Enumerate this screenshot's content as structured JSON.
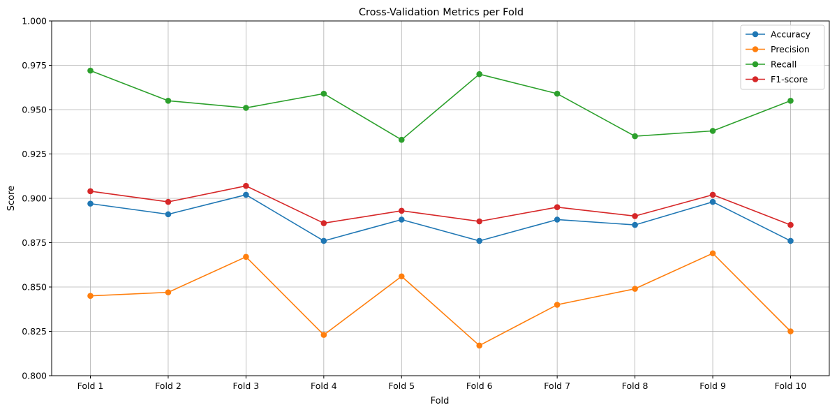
{
  "chart_data": {
    "type": "line",
    "title": "Cross-Validation Metrics per Fold",
    "xlabel": "Fold",
    "ylabel": "Score",
    "categories": [
      "Fold 1",
      "Fold 2",
      "Fold 3",
      "Fold 4",
      "Fold 5",
      "Fold 6",
      "Fold 7",
      "Fold 8",
      "Fold 9",
      "Fold 10"
    ],
    "ylim": [
      0.8,
      1.0
    ],
    "yticks": [
      "0.800",
      "0.825",
      "0.850",
      "0.875",
      "0.900",
      "0.925",
      "0.950",
      "0.975",
      "1.000"
    ],
    "grid": true,
    "legend_position": "top-right",
    "series": [
      {
        "name": "Accuracy",
        "color": "#1f77b4",
        "values": [
          0.897,
          0.891,
          0.902,
          0.876,
          0.888,
          0.876,
          0.888,
          0.885,
          0.898,
          0.876
        ]
      },
      {
        "name": "Precision",
        "color": "#ff7f0e",
        "values": [
          0.845,
          0.847,
          0.867,
          0.823,
          0.856,
          0.817,
          0.84,
          0.849,
          0.869,
          0.825
        ]
      },
      {
        "name": "Recall",
        "color": "#2ca02c",
        "values": [
          0.972,
          0.955,
          0.951,
          0.959,
          0.933,
          0.97,
          0.959,
          0.935,
          0.938,
          0.955
        ]
      },
      {
        "name": "F1-score",
        "color": "#d62728",
        "values": [
          0.904,
          0.898,
          0.907,
          0.886,
          0.893,
          0.887,
          0.895,
          0.89,
          0.902,
          0.885
        ]
      }
    ]
  }
}
